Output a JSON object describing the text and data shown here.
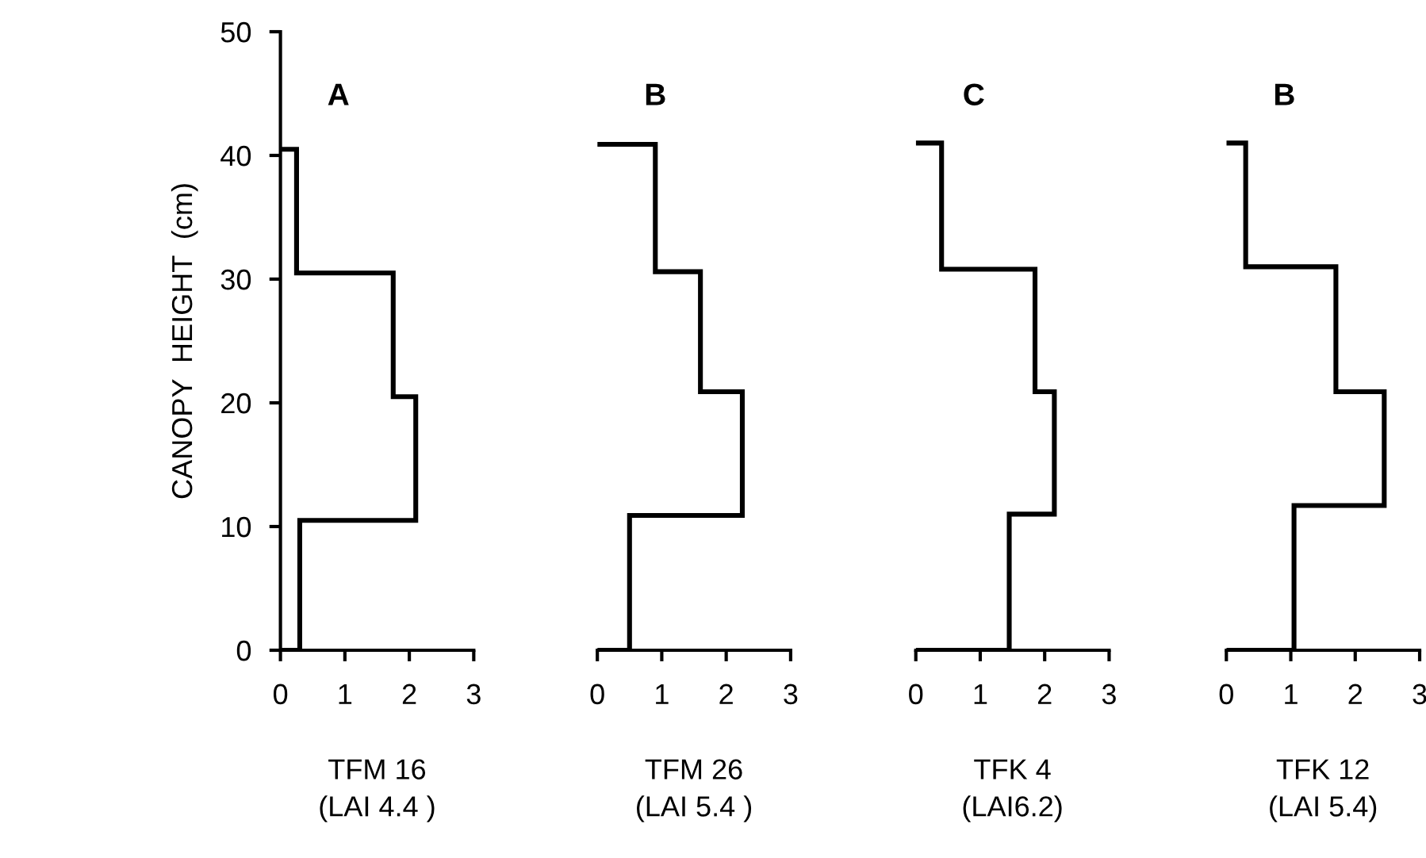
{
  "chart_data": [
    {
      "type": "histogram",
      "orientation": "horizontal",
      "title": "A",
      "xlabel": "TFM 16\n(LAI 4.4 )",
      "ylabel": "CANOPY  HEIGHT  (cm)",
      "bins": [
        0,
        10.5,
        20.5,
        30.5,
        40.5
      ],
      "values": [
        0.3,
        2.1,
        1.75,
        0.25
      ],
      "color": "#000000",
      "xlim": [
        0,
        3
      ],
      "xticks": [
        0,
        1,
        2,
        3
      ],
      "ylim": [
        0,
        50
      ],
      "yticks": [
        0,
        10,
        20,
        30,
        40,
        50
      ]
    },
    {
      "type": "histogram",
      "orientation": "horizontal",
      "title": "B",
      "xlabel": "TFM 26\n(LAI 5.4 )",
      "bins": [
        0,
        10.9,
        20.9,
        30.6,
        40.9
      ],
      "values": [
        0.5,
        2.25,
        1.6,
        0.9
      ],
      "color": "#000000",
      "xlim": [
        0,
        3
      ],
      "xticks": [
        0,
        1,
        2,
        3
      ],
      "ylim": [
        0,
        50
      ],
      "tick_labels": "x"
    },
    {
      "type": "histogram",
      "orientation": "horizontal",
      "title": "C",
      "xlabel": "TFK 4\n(LAI6.2)",
      "bins": [
        0,
        11,
        20.9,
        30.8,
        41
      ],
      "values": [
        1.45,
        2.15,
        1.85,
        0.4
      ],
      "color": "#000000",
      "xlim": [
        0,
        3
      ],
      "xticks": [
        0,
        1,
        2,
        3
      ],
      "ylim": [
        0,
        50
      ],
      "tick_labels": "x"
    },
    {
      "type": "histogram",
      "orientation": "horizontal",
      "title": "B",
      "xlabel": "TFK 12\n(LAI 5.4)",
      "bins": [
        0,
        11.7,
        20.9,
        31,
        41
      ],
      "values": [
        1.05,
        2.45,
        1.7,
        0.3
      ],
      "color": "#000000",
      "xlim": [
        0,
        3
      ],
      "xticks": [
        0,
        1,
        2,
        3
      ],
      "ylim": [
        0,
        50
      ],
      "tick_labels": "x"
    }
  ]
}
